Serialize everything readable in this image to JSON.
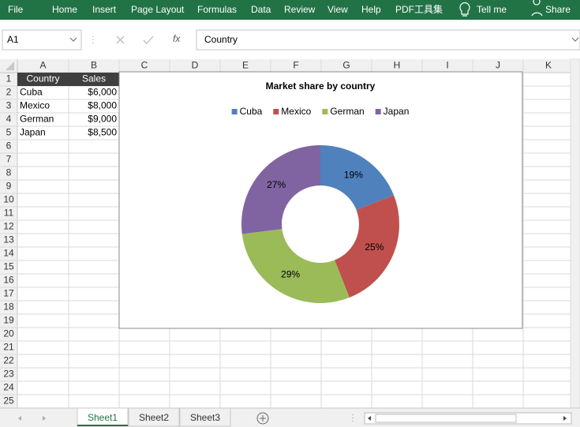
{
  "ribbon": {
    "tabs": [
      "File",
      "Home",
      "Insert",
      "Page Layout",
      "Formulas",
      "Data",
      "Review",
      "View",
      "Help",
      "PDF工具集"
    ],
    "tell_me": "Tell me",
    "share": "Share"
  },
  "formula_bar": {
    "name_box": "A1",
    "function_icon": "fx",
    "content": "Country"
  },
  "columns": [
    "A",
    "B",
    "C",
    "D",
    "E",
    "F",
    "G",
    "H",
    "I",
    "J",
    "K"
  ],
  "rows": [
    1,
    2,
    3,
    4,
    5,
    6,
    7,
    8,
    9,
    10,
    11,
    12,
    13,
    14,
    15,
    16,
    17,
    18,
    19,
    20,
    21,
    22,
    23,
    24,
    25
  ],
  "table": {
    "header": [
      "Country",
      "Sales"
    ],
    "rows": [
      [
        "Cuba",
        "$6,000"
      ],
      [
        "Mexico",
        "$8,000"
      ],
      [
        "German",
        "$9,000"
      ],
      [
        "Japan",
        "$8,500"
      ]
    ]
  },
  "chart_data": {
    "type": "donut",
    "title": "Market share by country",
    "categories": [
      "Cuba",
      "Mexico",
      "German",
      "Japan"
    ],
    "values": [
      19,
      25,
      29,
      27
    ],
    "value_labels": [
      "19%",
      "25%",
      "29%",
      "27%"
    ],
    "colors": [
      "#4f81bd",
      "#c0504d",
      "#9bbb59",
      "#8064a2"
    ],
    "legend": "top"
  },
  "sheets": [
    "Sheet1",
    "Sheet2",
    "Sheet3"
  ],
  "active_sheet": 0
}
